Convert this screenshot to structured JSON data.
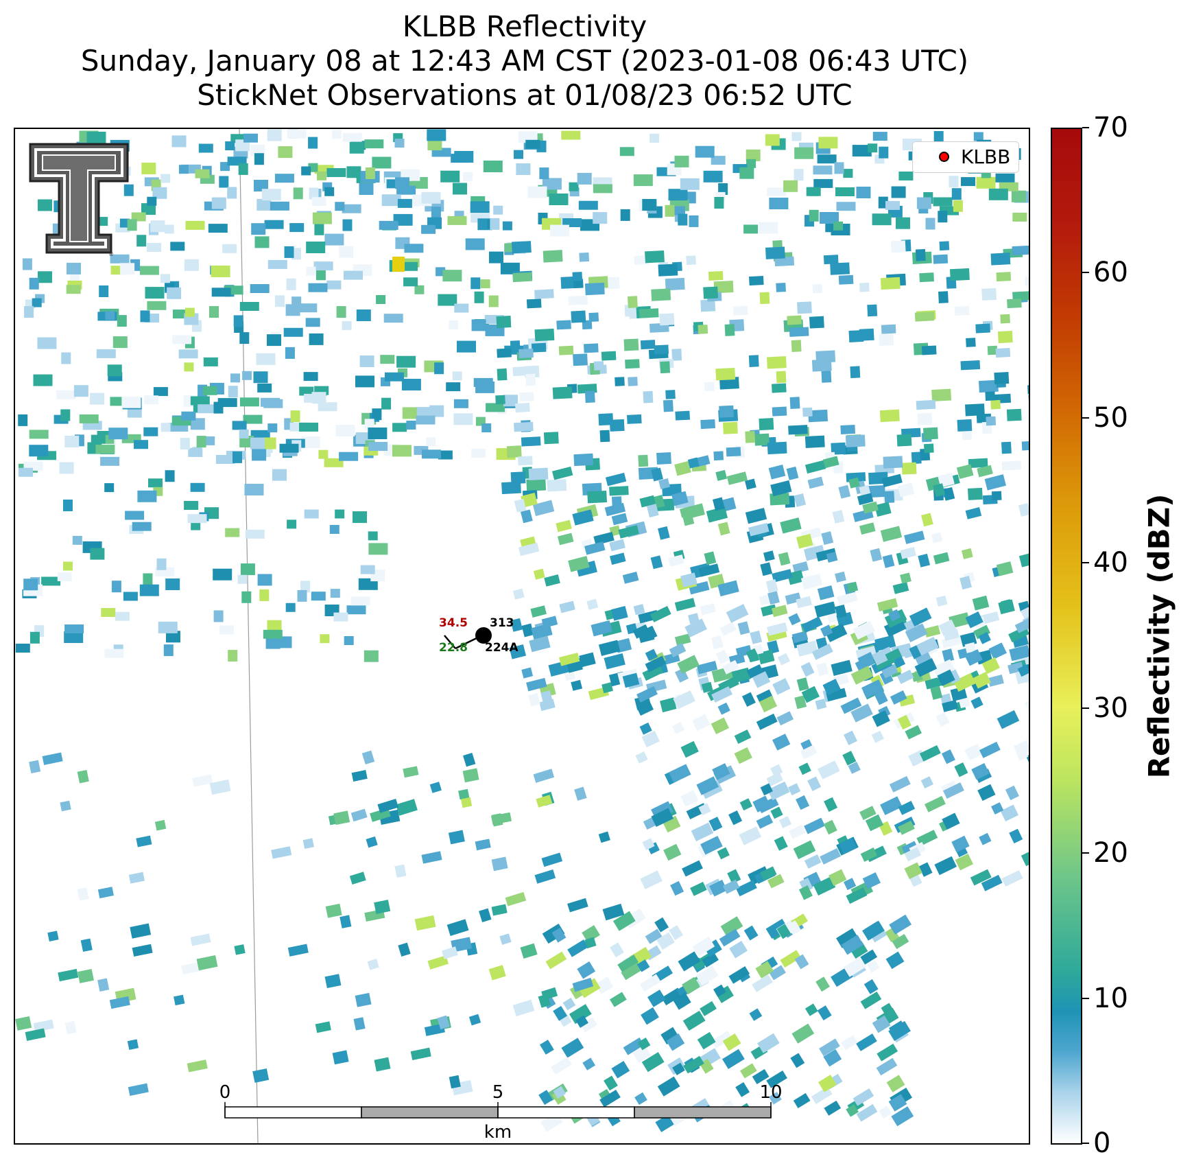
{
  "title": {
    "line1": "KLBB Reflectivity",
    "line2": "Sunday, January 08 at 12:43 AM CST (2023-01-08 06:43 UTC)",
    "line3": "StickNet Observations at 01/08/23 06:52 UTC"
  },
  "logo": {
    "name": "Texas Tech Double T",
    "registered": "®"
  },
  "legend": {
    "label": "KLBB",
    "marker_color": "#ff0000"
  },
  "colorbar": {
    "title": "Reflectivity (dBZ)",
    "ticks": [
      "70",
      "60",
      "50",
      "40",
      "30",
      "20",
      "10",
      "0"
    ],
    "range": [
      0,
      70
    ]
  },
  "station": {
    "temperature": "34.5",
    "temperature_color": "#b00000",
    "dewpoint": "22.8",
    "dewpoint_color": "#1a7a1a",
    "pressure": "313",
    "id": "224A"
  },
  "scalebar": {
    "ticks": [
      "0",
      "5",
      "10"
    ],
    "unit": "km"
  }
}
